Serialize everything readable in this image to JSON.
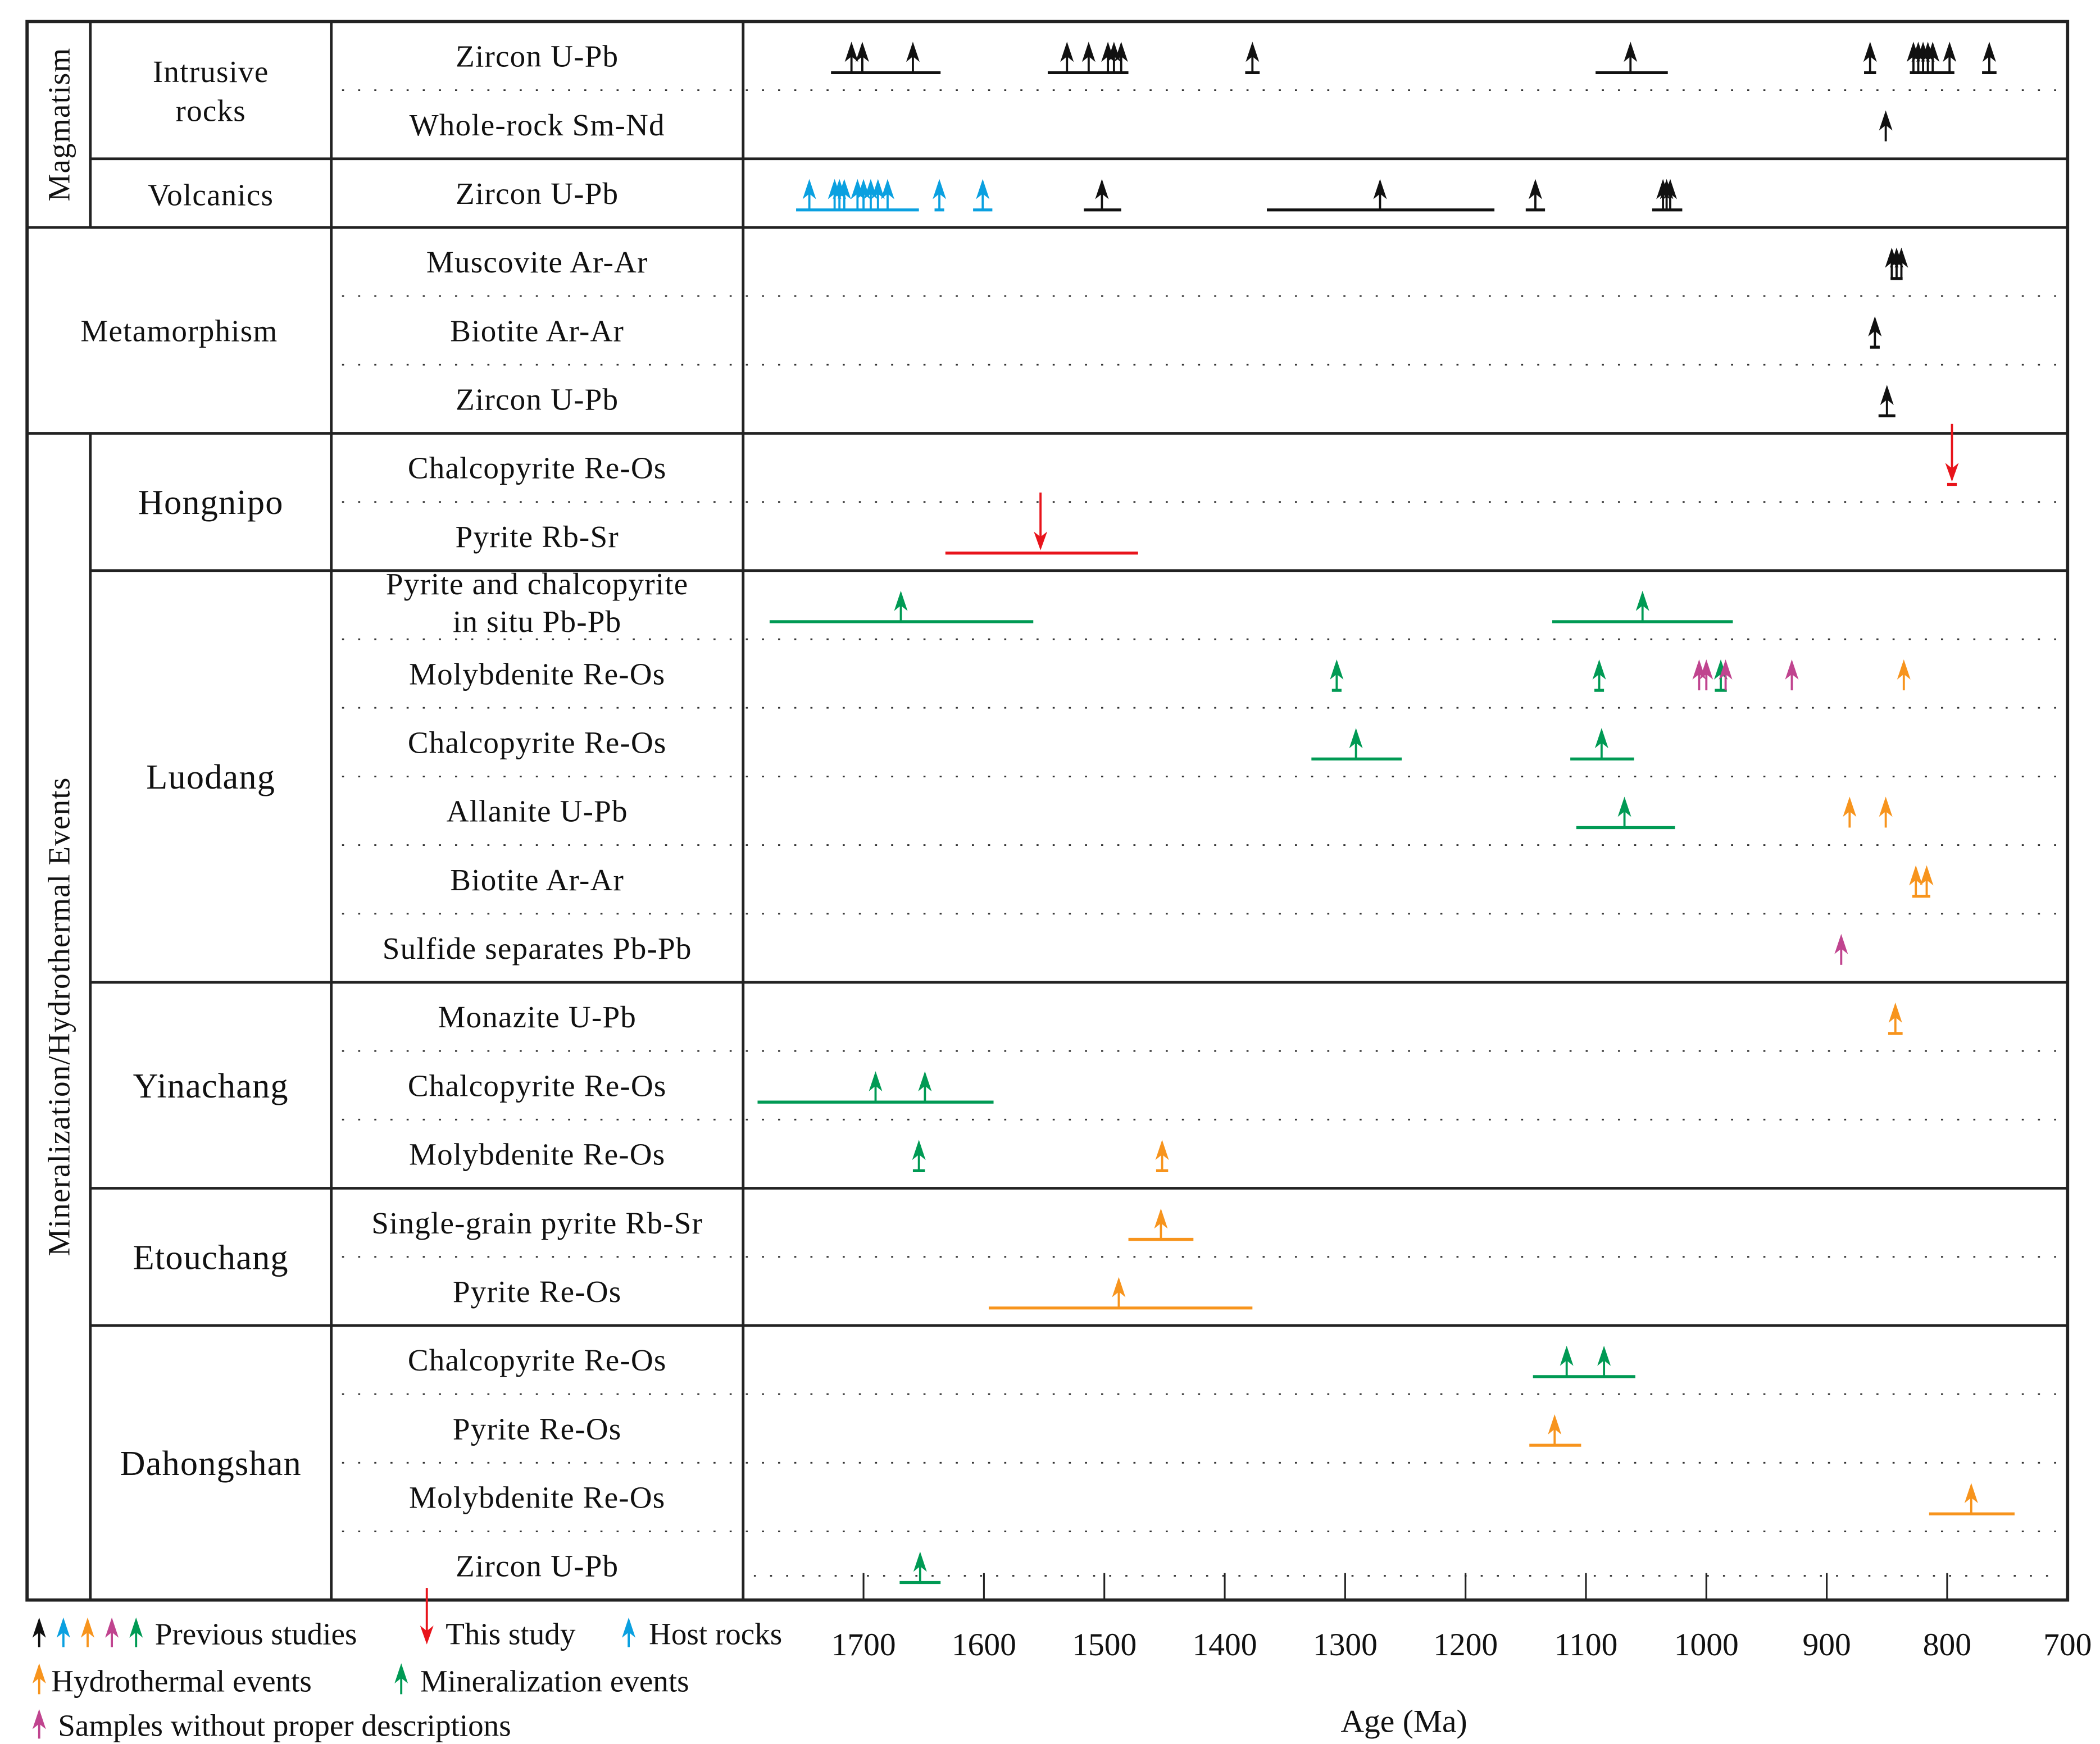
{
  "colors": {
    "black": "#111111",
    "blue": "#0aa0e0",
    "orange": "#f7941d",
    "magenta": "#c0448f",
    "green": "#009a54",
    "red": "#e8141b"
  },
  "chart_data": {
    "type": "timeline",
    "title": "",
    "xlabel": "Age (Ma)",
    "xlim": [
      1800,
      700
    ],
    "xticks": [
      "1700",
      "1600",
      "1500",
      "1400",
      "1300",
      "1200",
      "1100",
      "1000",
      "900",
      "800",
      "700"
    ],
    "sections": [
      {
        "label": "Magmatism",
        "vertical": true,
        "subgroups": [
          {
            "label": "Intrusive rocks",
            "rows": [
              {
                "label": "Zircon U-Pb",
                "events": [
                  {
                    "color": "black",
                    "ages": [
                      1710,
                      1701,
                      1659
                    ],
                    "range": [
                      1727,
                      1636
                    ]
                  },
                  {
                    "color": "black",
                    "ages": [
                      1531,
                      1513,
                      1497,
                      1492,
                      1486
                    ],
                    "range": [
                      1547,
                      1480
                    ]
                  },
                  {
                    "color": "black",
                    "ages": [
                      1377
                    ],
                    "range": [
                      1383,
                      1371
                    ]
                  },
                  {
                    "color": "black",
                    "ages": [
                      1063
                    ],
                    "range": [
                      1092,
                      1032
                    ]
                  },
                  {
                    "color": "black",
                    "ages": [
                      864
                    ],
                    "range": [
                      869,
                      859
                    ]
                  },
                  {
                    "color": "black",
                    "ages": [
                      828,
                      824,
                      820,
                      816,
                      812,
                      798
                    ],
                    "range": [
                      831,
                      794
                    ]
                  },
                  {
                    "color": "black",
                    "ages": [
                      765
                    ],
                    "range": [
                      771,
                      759
                    ]
                  }
                ]
              },
              {
                "label": "Whole-rock Sm-Nd",
                "events": [
                  {
                    "color": "black",
                    "ages": [
                      851
                    ]
                  }
                ]
              }
            ]
          },
          {
            "label": "Volcanics",
            "rows": [
              {
                "label": "Zircon U-Pb",
                "events": [
                  {
                    "color": "blue",
                    "ages": [
                      1745,
                      1724,
                      1720,
                      1716,
                      1705,
                      1700,
                      1694,
                      1688,
                      1680
                    ],
                    "range": [
                      1756,
                      1654
                    ]
                  },
                  {
                    "color": "blue",
                    "ages": [
                      1637
                    ],
                    "range": [
                      1641,
                      1633
                    ]
                  },
                  {
                    "color": "blue",
                    "ages": [
                      1601
                    ],
                    "range": [
                      1609,
                      1593
                    ]
                  },
                  {
                    "color": "black",
                    "ages": [
                      1502
                    ],
                    "range": [
                      1517,
                      1486
                    ]
                  },
                  {
                    "color": "black",
                    "ages": [
                      1271
                    ],
                    "range": [
                      1365,
                      1176
                    ]
                  },
                  {
                    "color": "black",
                    "ages": [
                      1142
                    ],
                    "range": [
                      1150,
                      1134
                    ]
                  },
                  {
                    "color": "black",
                    "ages": [
                      1036,
                      1033,
                      1030
                    ],
                    "range": [
                      1045,
                      1020
                    ]
                  }
                ]
              }
            ]
          }
        ]
      },
      {
        "label": "Metamorphism",
        "vertical": false,
        "subgroups": [
          {
            "label": "",
            "rows": [
              {
                "label": "Muscovite Ar-Ar",
                "events": [
                  {
                    "color": "black",
                    "ages": [
                      846,
                      842,
                      838
                    ],
                    "range": [
                      847,
                      837
                    ]
                  }
                ]
              },
              {
                "label": "Biotite Ar-Ar",
                "events": [
                  {
                    "color": "black",
                    "ages": [
                      860
                    ],
                    "range": [
                      864,
                      856
                    ]
                  }
                ]
              },
              {
                "label": "Zircon U-Pb",
                "events": [
                  {
                    "color": "black",
                    "ages": [
                      850
                    ],
                    "range": [
                      857,
                      843
                    ]
                  }
                ]
              }
            ]
          }
        ]
      },
      {
        "label": "Mineralization/Hydrothermal Events",
        "vertical": true,
        "subgroups": [
          {
            "label": "Hongnipo",
            "rows": [
              {
                "label": "Chalcopyrite Re-Os",
                "events": [
                  {
                    "color": "red",
                    "down": true,
                    "ages": [
                      796
                    ],
                    "range": [
                      800,
                      792
                    ]
                  }
                ]
              },
              {
                "label": "Pyrite Rb-Sr",
                "events": [
                  {
                    "color": "red",
                    "down": true,
                    "ages": [
                      1553
                    ],
                    "range": [
                      1632,
                      1472
                    ]
                  }
                ]
              }
            ]
          },
          {
            "label": "Luodang",
            "rows": [
              {
                "label": "Pyrite and chalcopyrite",
                "label2": "in situ Pb-Pb",
                "events": [
                  {
                    "color": "green",
                    "ages": [
                      1669
                    ],
                    "range": [
                      1778,
                      1559
                    ]
                  },
                  {
                    "color": "green",
                    "ages": [
                      1053
                    ],
                    "range": [
                      1128,
                      978
                    ]
                  }
                ]
              },
              {
                "label": "Molybdenite Re-Os",
                "events": [
                  {
                    "color": "green",
                    "ages": [
                      1307
                    ],
                    "range": [
                      1311,
                      1303
                    ]
                  },
                  {
                    "color": "green",
                    "ages": [
                      1089
                    ],
                    "range": [
                      1093,
                      1085
                    ]
                  },
                  {
                    "color": "magenta",
                    "ages": [
                      1006,
                      1000
                    ]
                  },
                  {
                    "color": "green",
                    "ages": [
                      988
                    ],
                    "range": [
                      993,
                      983
                    ]
                  },
                  {
                    "color": "magenta",
                    "ages": [
                      984
                    ]
                  },
                  {
                    "color": "magenta",
                    "ages": [
                      929
                    ]
                  },
                  {
                    "color": "orange",
                    "ages": [
                      836
                    ]
                  }
                ]
              },
              {
                "label": "Chalcopyrite Re-Os",
                "events": [
                  {
                    "color": "green",
                    "ages": [
                      1291
                    ],
                    "range": [
                      1328,
                      1253
                    ]
                  },
                  {
                    "color": "green",
                    "ages": [
                      1087
                    ],
                    "range": [
                      1113,
                      1060
                    ]
                  }
                ]
              },
              {
                "label": "Allanite U-Pb",
                "events": [
                  {
                    "color": "green",
                    "ages": [
                      1068
                    ],
                    "range": [
                      1108,
                      1026
                    ]
                  },
                  {
                    "color": "orange",
                    "ages": [
                      881
                    ]
                  },
                  {
                    "color": "orange",
                    "ages": [
                      851
                    ]
                  }
                ]
              },
              {
                "label": "Biotite Ar-Ar",
                "events": [
                  {
                    "color": "orange",
                    "ages": [
                      826,
                      817
                    ],
                    "range": [
                      829,
                      814
                    ]
                  }
                ]
              },
              {
                "label": "Sulfide separates Pb-Pb",
                "events": [
                  {
                    "color": "magenta",
                    "ages": [
                      888
                    ]
                  }
                ]
              }
            ]
          },
          {
            "label": "Yinachang",
            "rows": [
              {
                "label": "Monazite U-Pb",
                "events": [
                  {
                    "color": "orange",
                    "ages": [
                      843
                    ],
                    "range": [
                      849,
                      837
                    ]
                  }
                ]
              },
              {
                "label": "Chalcopyrite Re-Os",
                "events": [
                  {
                    "color": "green",
                    "ages": [
                      1690,
                      1649
                    ],
                    "range": [
                      1788,
                      1592
                    ]
                  }
                ]
              },
              {
                "label": "Molybdenite Re-Os",
                "events": [
                  {
                    "color": "green",
                    "ages": [
                      1654
                    ],
                    "range": [
                      1659,
                      1649
                    ]
                  },
                  {
                    "color": "orange",
                    "ages": [
                      1452
                    ],
                    "range": [
                      1457,
                      1447
                    ]
                  }
                ]
              }
            ]
          },
          {
            "label": "Etouchang",
            "rows": [
              {
                "label": "Single-grain pyrite Rb-Sr",
                "events": [
                  {
                    "color": "orange",
                    "ages": [
                      1453
                    ],
                    "range": [
                      1480,
                      1426
                    ]
                  }
                ]
              },
              {
                "label": "Pyrite Re-Os",
                "events": [
                  {
                    "color": "orange",
                    "ages": [
                      1488
                    ],
                    "range": [
                      1596,
                      1377
                    ]
                  }
                ]
              }
            ]
          },
          {
            "label": "Dahongshan",
            "rows": [
              {
                "label": "Chalcopyrite Re-Os",
                "events": [
                  {
                    "color": "green",
                    "ages": [
                      1116,
                      1085
                    ],
                    "range": [
                      1144,
                      1059
                    ]
                  }
                ]
              },
              {
                "label": "Pyrite Re-Os",
                "events": [
                  {
                    "color": "orange",
                    "ages": [
                      1126
                    ],
                    "range": [
                      1147,
                      1104
                    ]
                  }
                ]
              },
              {
                "label": "Molybdenite Re-Os",
                "events": [
                  {
                    "color": "orange",
                    "ages": [
                      780
                    ],
                    "range": [
                      815,
                      744
                    ]
                  }
                ]
              },
              {
                "label": "Zircon U-Pb",
                "events": [
                  {
                    "color": "green",
                    "ages": [
                      1653
                    ],
                    "range": [
                      1670,
                      1636
                    ]
                  }
                ]
              }
            ]
          }
        ]
      }
    ]
  },
  "legend": {
    "previous": {
      "colors": [
        "black",
        "blue",
        "orange",
        "magenta",
        "green"
      ],
      "label": "Previous studies"
    },
    "this_study": {
      "color": "red",
      "label": "This study"
    },
    "host_rocks": {
      "color": "blue",
      "label": "Host rocks"
    },
    "hydrothermal": {
      "color": "orange",
      "label": "Hydrothermal events"
    },
    "mineralization": {
      "color": "green",
      "label": "Mineralization events"
    },
    "samples": {
      "color": "magenta",
      "label": "Samples without proper descriptions"
    }
  }
}
